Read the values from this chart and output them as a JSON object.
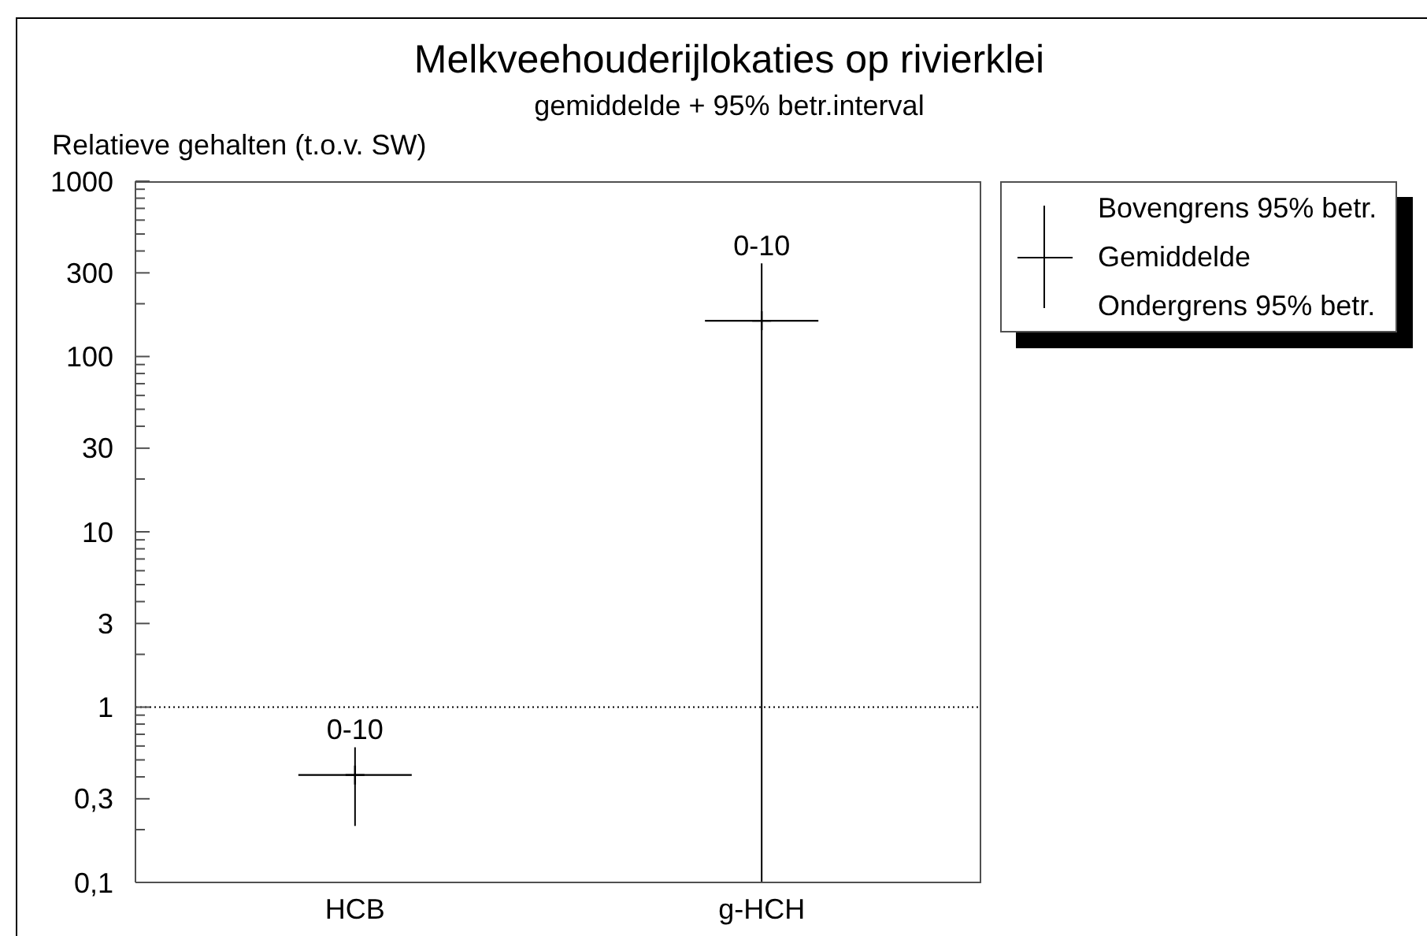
{
  "chart_data": {
    "type": "scatter",
    "title": "Melkveehouderijlokaties op rivierklei",
    "subtitle": "gemiddelde + 95% betr.interval",
    "ylabel": "Relatieve gehalten (t.o.v. SW)",
    "categories": [
      "HCB",
      "g-HCH"
    ],
    "series": [
      {
        "name": "Gemiddelde",
        "color": "#000000",
        "values": [
          0.41,
          160
        ],
        "errors": [
          [
            0.21,
            0.59
          ],
          [
            0.1,
            340
          ]
        ],
        "value_labels": [
          "0-10",
          "0-10"
        ]
      }
    ],
    "log": true,
    "ylim": [
      0.1,
      1000
    ],
    "yticks": [
      {
        "value": 0.1,
        "label": "0,1"
      },
      {
        "value": 0.2,
        "label": null
      },
      {
        "value": 0.3,
        "label": "0,3"
      },
      {
        "value": 0.4,
        "label": null
      },
      {
        "value": 0.5,
        "label": null
      },
      {
        "value": 0.6,
        "label": null
      },
      {
        "value": 0.7,
        "label": null
      },
      {
        "value": 0.8,
        "label": null
      },
      {
        "value": 0.9,
        "label": null
      },
      1,
      {
        "value": 2,
        "label": null
      },
      3,
      {
        "value": 4,
        "label": null
      },
      {
        "value": 5,
        "label": null
      },
      {
        "value": 6,
        "label": null
      },
      {
        "value": 7,
        "label": null
      },
      {
        "value": 8,
        "label": null
      },
      {
        "value": 9,
        "label": null
      },
      10,
      {
        "value": 20,
        "label": null
      },
      30,
      {
        "value": 40,
        "label": null
      },
      {
        "value": 50,
        "label": null
      },
      {
        "value": 60,
        "label": null
      },
      {
        "value": 70,
        "label": null
      },
      {
        "value": 80,
        "label": null
      },
      {
        "value": 90,
        "label": null
      },
      100,
      {
        "value": 200,
        "label": null
      },
      300,
      {
        "value": 400,
        "label": null
      },
      {
        "value": 500,
        "label": null
      },
      {
        "value": 600,
        "label": null
      },
      {
        "value": 700,
        "label": null
      },
      {
        "value": 800,
        "label": null
      },
      {
        "value": 900,
        "label": null
      },
      1000
    ],
    "marker": "cross",
    "legend": "top right",
    "ref_lines": [
      {
        "axis": "y",
        "value": 1,
        "color": "#000000",
        "line_style": "dotted"
      }
    ],
    "annotations": [
      "Bovengrens 95% betr.",
      "Ondergrens 95% betr."
    ]
  }
}
